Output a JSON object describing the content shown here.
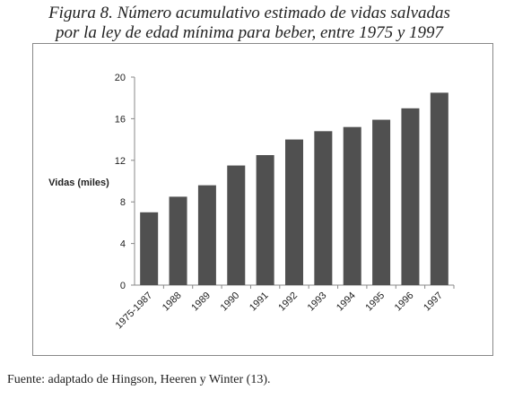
{
  "chart_data": {
    "type": "bar",
    "title": [
      "Figura 8. Número acumulativo estimado de vidas salvadas",
      "por la ley de edad mínima para beber, entre 1975 y 1997"
    ],
    "y_label": "Vidas (miles)",
    "categories": [
      "1975-1987",
      "1988",
      "1989",
      "1990",
      "1991",
      "1992",
      "1993",
      "1994",
      "1995",
      "1996",
      "1997"
    ],
    "values": [
      7.0,
      8.5,
      9.6,
      11.5,
      12.5,
      14.0,
      14.8,
      15.2,
      15.9,
      17.0,
      18.5
    ],
    "color": "#505050",
    "ylim": [
      0,
      20
    ],
    "yticks": [
      0,
      4,
      8,
      12,
      16,
      20
    ],
    "source": "Fuente: adaptado de Hingson, Heeren y Winter (13)."
  }
}
